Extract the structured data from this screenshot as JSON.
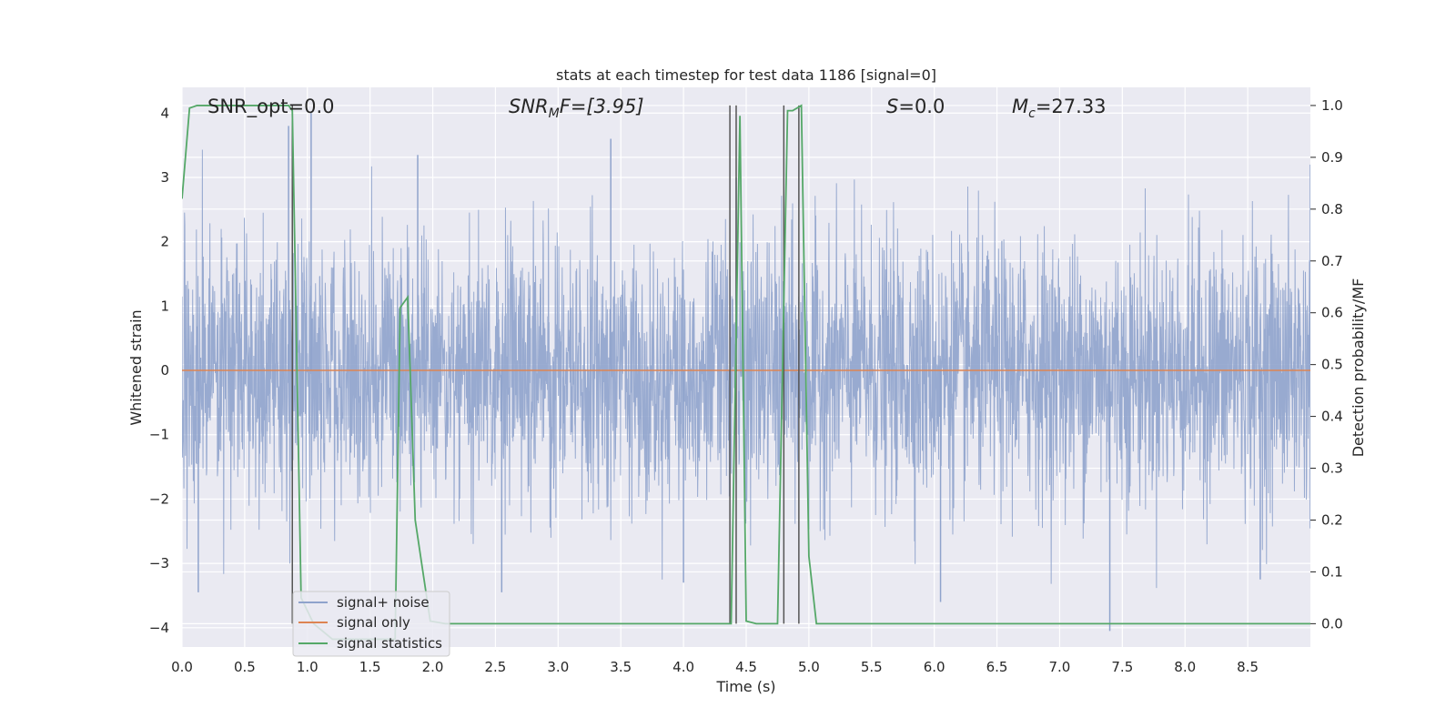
{
  "chart_data": {
    "type": "line",
    "title": "stats at each timestep for test data 1186 [signal=0]",
    "xlabel": "Time (s)",
    "ylabel": "Whitened strain",
    "y2label": "Detection probability/MF",
    "xlim": [
      0,
      9.0
    ],
    "ylim": [
      -4.3,
      4.4
    ],
    "y2lim": [
      -0.045,
      1.035
    ],
    "x_ticks": [
      "0.0",
      "0.5",
      "1.0",
      "1.5",
      "2.0",
      "2.5",
      "3.0",
      "3.5",
      "4.0",
      "4.5",
      "5.0",
      "5.5",
      "6.0",
      "6.5",
      "7.0",
      "7.5",
      "8.0",
      "8.5"
    ],
    "y_ticks": [
      "4",
      "3",
      "2",
      "1",
      "0",
      "−1",
      "−2",
      "−3",
      "−4"
    ],
    "y2_ticks": [
      "1.0",
      "0.9",
      "0.8",
      "0.7",
      "0.6",
      "0.5",
      "0.4",
      "0.3",
      "0.2",
      "0.1",
      "0.0"
    ],
    "grid": true,
    "legend_position": "lower-left",
    "annotations": {
      "snr_opt": "SNR_opt=0.0",
      "snr_mf_base": "SNR",
      "snr_mf_sub": "M",
      "snr_mf_tail": "F=[3.95]",
      "s_label": "S",
      "s_value": "=0.0",
      "mc_base": "M",
      "mc_sub": "c",
      "mc_value": "=27.33"
    },
    "series": [
      {
        "name": "signal+ noise",
        "color": "#8fa3cc",
        "noise_envelope": {
          "typical_abs": 1.6,
          "max_peaks": [
            [
              0.85,
              3.8
            ],
            [
              1.03,
              4.0
            ],
            [
              1.88,
              3.35
            ],
            [
              3.42,
              3.6
            ],
            [
              4.42,
              3.0
            ],
            [
              9.0,
              3.2
            ]
          ],
          "min_peaks": [
            [
              0.13,
              -3.45
            ],
            [
              2.55,
              -3.45
            ],
            [
              4.0,
              -3.3
            ],
            [
              6.05,
              -3.6
            ],
            [
              7.4,
              -4.05
            ],
            [
              8.6,
              -3.25
            ]
          ]
        }
      },
      {
        "name": "signal only",
        "color": "#dd8452",
        "x": [
          0,
          9.0
        ],
        "y": [
          0,
          0
        ]
      },
      {
        "name": "signal statistics",
        "color": "#55a868",
        "axis": "right",
        "x": [
          0.0,
          0.06,
          0.12,
          0.85,
          0.88,
          0.95,
          1.05,
          1.2,
          1.7,
          1.74,
          1.8,
          1.86,
          1.98,
          2.1,
          4.32,
          4.38,
          4.45,
          4.5,
          4.58,
          4.75,
          4.83,
          4.87,
          4.94,
          5.0,
          5.06,
          9.0
        ],
        "y": [
          0.82,
          0.995,
          1.0,
          1.0,
          0.99,
          0.05,
          0.0,
          -0.03,
          -0.03,
          0.61,
          0.63,
          0.2,
          0.005,
          0.0,
          0.0,
          0.0,
          0.98,
          0.005,
          0.0,
          0.0,
          0.99,
          0.99,
          1.0,
          0.13,
          0.0,
          0.0
        ]
      }
    ],
    "vertical_lines": {
      "color": "#555555",
      "x": [
        0.88,
        4.37,
        4.42,
        4.8,
        4.92
      ]
    }
  }
}
